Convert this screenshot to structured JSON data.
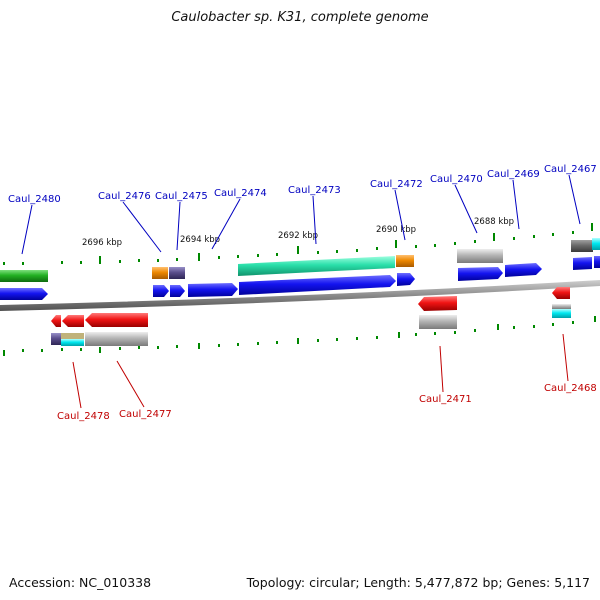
{
  "title": "Caulobacter sp. K31, complete genome",
  "footer": {
    "accession": "Accession: NC_010338",
    "stats": "Topology: circular; Length: 5,477,872 bp; Genes: 5,117"
  },
  "scale_labels": [
    "2696 kbp",
    "2694 kbp",
    "2692 kbp",
    "2690 kbp",
    "2688 kbp"
  ],
  "top_labels": [
    "Caul_2480",
    "Caul_2476",
    "Caul_2475",
    "Caul_2474",
    "Caul_2473",
    "Caul_2472",
    "Caul_2470",
    "Caul_2469",
    "Caul_2467"
  ],
  "bottom_labels": [
    "Caul_2478",
    "Caul_2477",
    "Caul_2471",
    "Caul_2468"
  ],
  "colors": {
    "forward_cds": "#0000e0",
    "reverse_cds": "#e00000",
    "green_feature": "#22b022",
    "teal_feature": "#22dda8",
    "orange_feature": "#ee8800",
    "purple_feature": "#5a4e8c",
    "cyan_feature": "#00e8f0",
    "grey_feature": "#aaaaaa",
    "backbone": "#8a8a8a",
    "tick": "#008800",
    "top_label": "#0000c0",
    "bottom_label": "#c00000"
  }
}
